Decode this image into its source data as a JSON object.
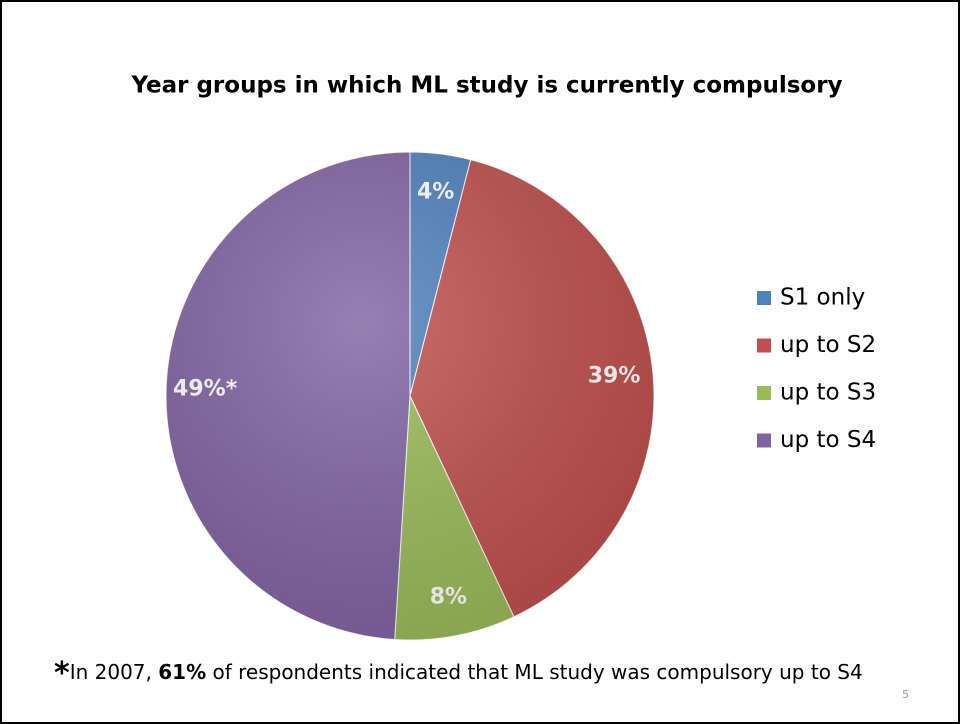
{
  "chart_data": {
    "type": "pie",
    "title": "Year groups in which ML study is currently compulsory",
    "categories": [
      "S1 only",
      "up to S2",
      "up to S3",
      "up to S4"
    ],
    "values": [
      4,
      39,
      8,
      49
    ],
    "value_labels": [
      "4%",
      "39%",
      "8%",
      "49%*"
    ],
    "colors": [
      "#4f81bd",
      "#c0504d",
      "#9bbb59",
      "#8064a2"
    ],
    "legend": "right"
  },
  "footnote": {
    "star": "*",
    "text_before": "In 2007, ",
    "bold": "61%",
    "text_after": " of respondents indicated that ML study was compulsory up to S4"
  },
  "page_number": "5"
}
